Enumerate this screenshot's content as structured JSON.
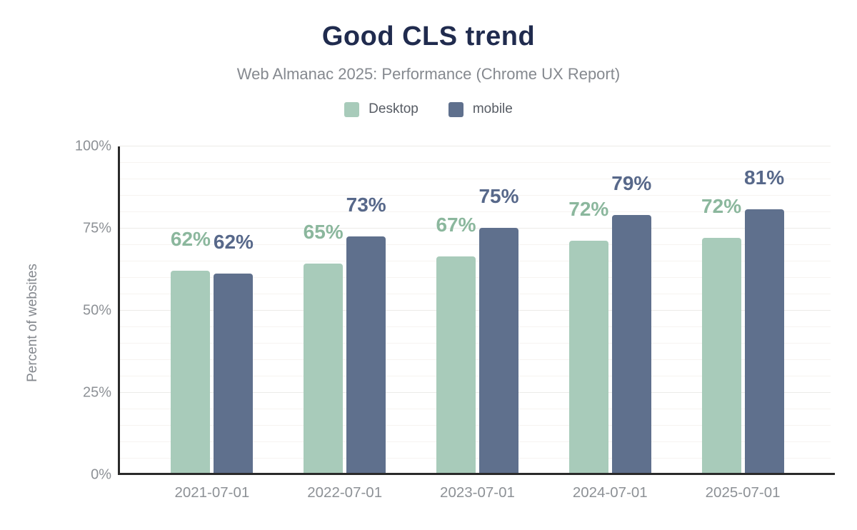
{
  "header": {
    "title": "Good CLS trend",
    "subtitle": "Web Almanac 2025: Performance (Chrome UX Report)"
  },
  "legend": [
    {
      "label": "Desktop",
      "color": "#a8cbba"
    },
    {
      "label": "mobile",
      "color": "#5f708d"
    }
  ],
  "axes": {
    "y_title": "Percent of websites",
    "y_ticks": [
      "100%",
      "75%",
      "50%",
      "25%",
      "0%"
    ],
    "x_ticks": [
      "2021-07-01",
      "2022-07-01",
      "2023-07-01",
      "2024-07-01",
      "2025-07-01"
    ]
  },
  "chart_data": {
    "type": "bar",
    "title": "Good CLS trend",
    "subtitle": "Web Almanac 2025: Performance (Chrome UX Report)",
    "categories": [
      "2021-07-01",
      "2022-07-01",
      "2023-07-01",
      "2024-07-01",
      "2025-07-01"
    ],
    "series": [
      {
        "name": "Desktop",
        "values": [
          62,
          65,
          67,
          72,
          72
        ],
        "labels": [
          "62%",
          "65%",
          "67%",
          "72%",
          "72%"
        ],
        "bar_heights_pct": [
          62,
          64.2,
          66.3,
          71,
          72
        ],
        "color": "#a8cbba",
        "label_color": "#8bb79d"
      },
      {
        "name": "mobile",
        "values": [
          62,
          73,
          75,
          79,
          81
        ],
        "labels": [
          "62%",
          "73%",
          "75%",
          "79%",
          "81%"
        ],
        "bar_heights_pct": [
          61,
          72.3,
          75,
          78.9,
          80.7
        ],
        "color": "#5f708d",
        "label_color": "#57688a"
      }
    ],
    "xlabel": "",
    "ylabel": "Percent of websites",
    "ylim": [
      0,
      100
    ],
    "y_tick_step": 25,
    "grid_minor_step": 5,
    "grid": true,
    "legend_position": "top",
    "value_labels_shown": true
  },
  "colors": {
    "title": "#202b4e",
    "subtitle": "#85898f",
    "tick_label": "#8d9196",
    "legend_label": "#575c64",
    "axis_line": "#2a2a2a",
    "grid_minor": "#f6f4f1",
    "grid_major": "#ecebe8",
    "background": "#ffffff"
  }
}
